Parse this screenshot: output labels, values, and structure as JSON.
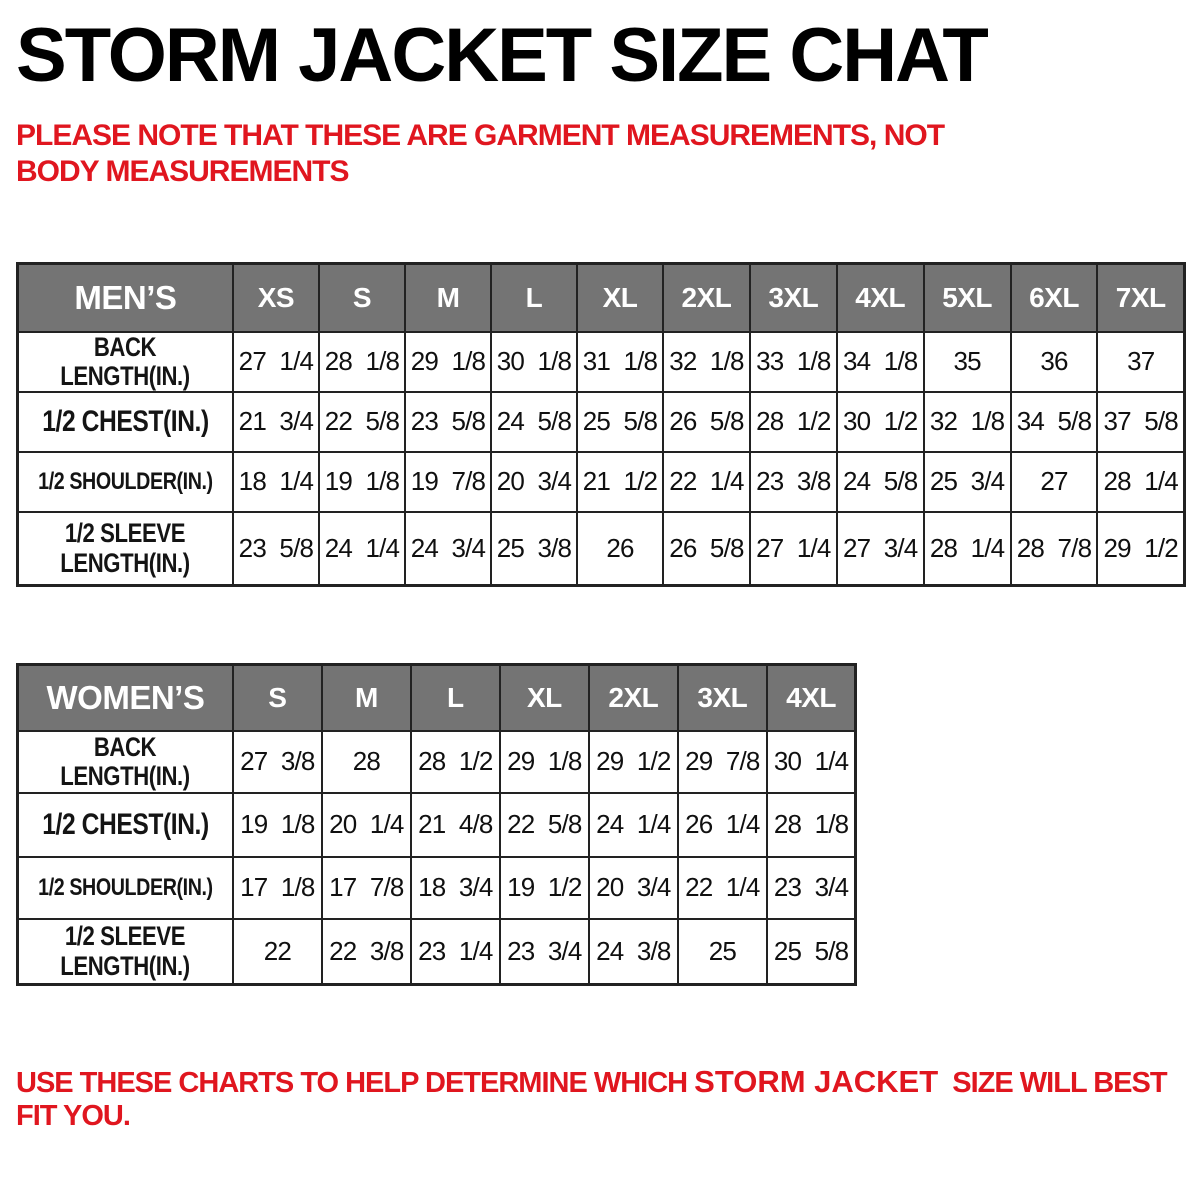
{
  "title": "STORM JACKET SIZE CHAT",
  "note": "PLEASE NOTE THAT THESE ARE GARMENT MEASUREMENTS, NOT BODY MEASUREMENTS",
  "footer": {
    "prefix": "USE THESE CHARTS TO HELP DETERMINE WHICH ",
    "highlight": "STORM JACKET",
    "suffix": "  SIZE WILL BEST FIT YOU."
  },
  "colors": {
    "accent_red": "#e0161f",
    "header_bg": "#747474",
    "header_text": "#ffffff",
    "border": "#222222",
    "text": "#111111",
    "background": "#ffffff"
  },
  "chart_data": [
    {
      "type": "table",
      "title": "MEN’S",
      "unit": "inches",
      "columns": [
        "MEN’S",
        "XS",
        "S",
        "M",
        "L",
        "XL",
        "2XL",
        "3XL",
        "4XL",
        "5XL",
        "6XL",
        "7XL"
      ],
      "rows": [
        {
          "label": "BACK\nLENGTH(IN.)",
          "values": [
            "27 1/4",
            "28 1/8",
            "29 1/8",
            "30 1/8",
            "31 1/8",
            "32 1/8",
            "33 1/8",
            "34 1/8",
            "35",
            "36",
            "37"
          ]
        },
        {
          "label": "1/2 CHEST(IN.)",
          "values": [
            "21 3/4",
            "22 5/8",
            "23 5/8",
            "24 5/8",
            "25 5/8",
            "26 5/8",
            "28 1/2",
            "30 1/2",
            "32 1/8",
            "34 5/8",
            "37 5/8"
          ]
        },
        {
          "label": "1/2 SHOULDER(IN.)",
          "values": [
            "18 1/4",
            "19 1/8",
            "19 7/8",
            "20 3/4",
            "21 1/2",
            "22 1/4",
            "23 3/8",
            "24 5/8",
            "25 3/4",
            "27",
            "28 1/4"
          ]
        },
        {
          "label": "1/2 SLEEVE\nLENGTH(IN.)",
          "values": [
            "23 5/8",
            "24 1/4",
            "24 3/4",
            "25 3/8",
            "26",
            "26 5/8",
            "27 1/4",
            "27 3/4",
            "28 1/4",
            "28 7/8",
            "29 1/2"
          ]
        }
      ]
    },
    {
      "type": "table",
      "title": "WOMEN’S",
      "unit": "inches",
      "columns": [
        "WOMEN’S",
        "S",
        "M",
        "L",
        "XL",
        "2XL",
        "3XL",
        "4XL"
      ],
      "rows": [
        {
          "label": "BACK\nLENGTH(IN.)",
          "values": [
            "27 3/8",
            "28",
            "28 1/2",
            "29 1/8",
            "29 1/2",
            "29 7/8",
            "30 1/4"
          ]
        },
        {
          "label": "1/2 CHEST(IN.)",
          "values": [
            "19 1/8",
            "20 1/4",
            "21 4/8",
            "22 5/8",
            "24 1/4",
            "26 1/4",
            "28 1/8"
          ]
        },
        {
          "label": "1/2 SHOULDER(IN.)",
          "values": [
            "17 1/8",
            "17 7/8",
            "18 3/4",
            "19 1/2",
            "20 3/4",
            "22 1/4",
            "23 3/4"
          ]
        },
        {
          "label": "1/2 SLEEVE\nLENGTH(IN.)",
          "values": [
            "22",
            "22 3/8",
            "23 1/4",
            "23 3/4",
            "24 3/8",
            "25",
            "25 5/8"
          ]
        }
      ]
    }
  ]
}
